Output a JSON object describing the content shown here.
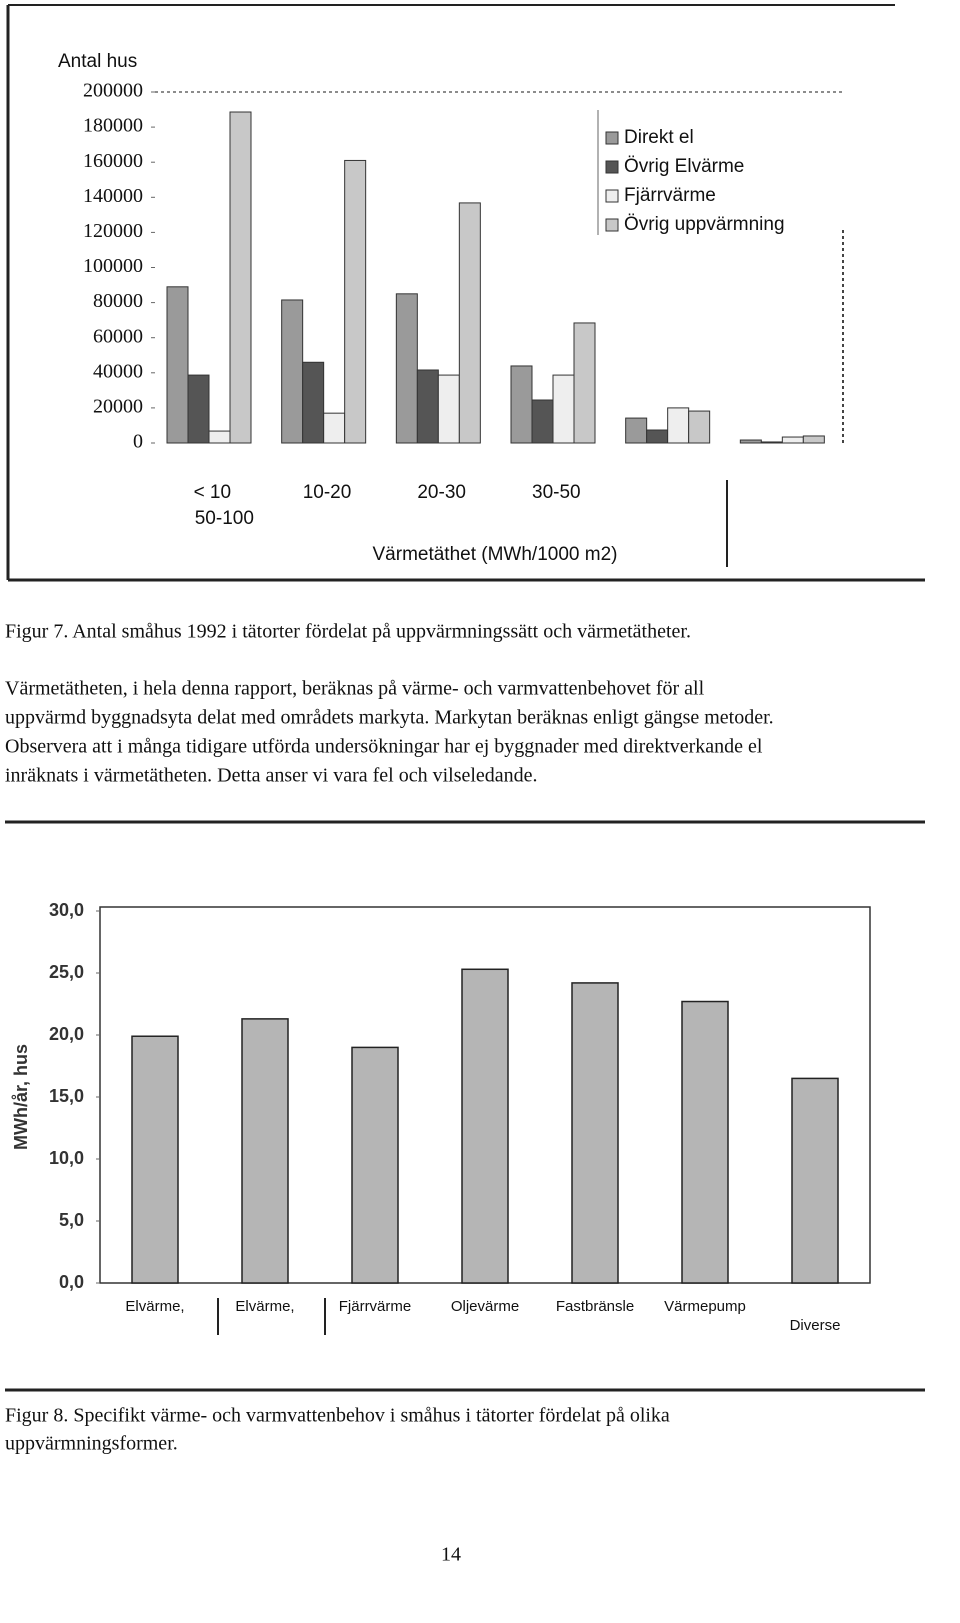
{
  "chart_data": [
    {
      "type": "bar",
      "y_label": "Antal hus",
      "x_label": "Värmetäthet (MWh/1000 m2)",
      "categories": [
        "< 10",
        "10-20",
        "20-30",
        "30-50",
        "50-100",
        null
      ],
      "series": [
        {
          "name": "Direkt el",
          "color": "#9a9a9a",
          "values": [
            89000,
            81500,
            85000,
            43900,
            14200,
            1700
          ]
        },
        {
          "name": "Övrig Elvärme",
          "color": "#555555",
          "values": [
            38700,
            46000,
            41600,
            24500,
            7400,
            600
          ]
        },
        {
          "name": "Fjärrvärme",
          "color": "#eeeeee",
          "values": [
            6800,
            17000,
            38700,
            38700,
            20000,
            3400
          ]
        },
        {
          "name": "Övrig uppvärmning",
          "color": "#c8c8c8",
          "values": [
            188600,
            161000,
            136800,
            68400,
            18200,
            4000
          ]
        }
      ],
      "ylim": [
        0,
        200000
      ],
      "yticks": [
        0,
        20000,
        40000,
        60000,
        80000,
        100000,
        120000,
        140000,
        160000,
        180000,
        200000
      ],
      "legend": "upper right"
    },
    {
      "type": "bar",
      "y_label": "MWh/år, hus",
      "categories": [
        "Elvärme,",
        "Elvärme,",
        "Fjärrvärme",
        "Oljevärme",
        "Fastbränsle",
        "Värmepump",
        "Diverse"
      ],
      "values": [
        19.9,
        21.3,
        19.0,
        25.3,
        24.2,
        22.7,
        16.5
      ],
      "color": "#b5b5b5",
      "ylim": [
        0,
        30
      ],
      "yticks": [
        {
          "value": 0,
          "label": "0,0"
        },
        {
          "value": 5,
          "label": "5,0"
        },
        {
          "value": 10,
          "label": "10,0"
        },
        {
          "value": 15,
          "label": "15,0"
        },
        {
          "value": 20,
          "label": "20,0"
        },
        {
          "value": 25,
          "label": "25,0"
        },
        {
          "value": 30,
          "label": "30,0"
        }
      ]
    }
  ],
  "figure_captions": [
    [
      "Figur 7. Antal småhus 1992 i tätorter fördelat på uppvärmningssätt och värmetätheter."
    ],
    [
      "Figur 8. Specifikt värme- och varmvattenbehov i småhus i tätorter fördelat på olika",
      "uppvärmningsformer."
    ]
  ],
  "paragraph_lines": [
    "Värmetätheten, i hela denna rapport, beräknas på värme- och varmvattenbehovet för all",
    "uppvärmd byggnadsyta delat med områdets markyta. Markytan beräknas enligt gängse metoder.",
    "Observera att i många tidigare utförda undersökningar har ej byggnader med direktverkande el",
    "inräknats i värmetätheten. Detta anser vi vara fel och vilseledande."
  ],
  "page_number": "14"
}
